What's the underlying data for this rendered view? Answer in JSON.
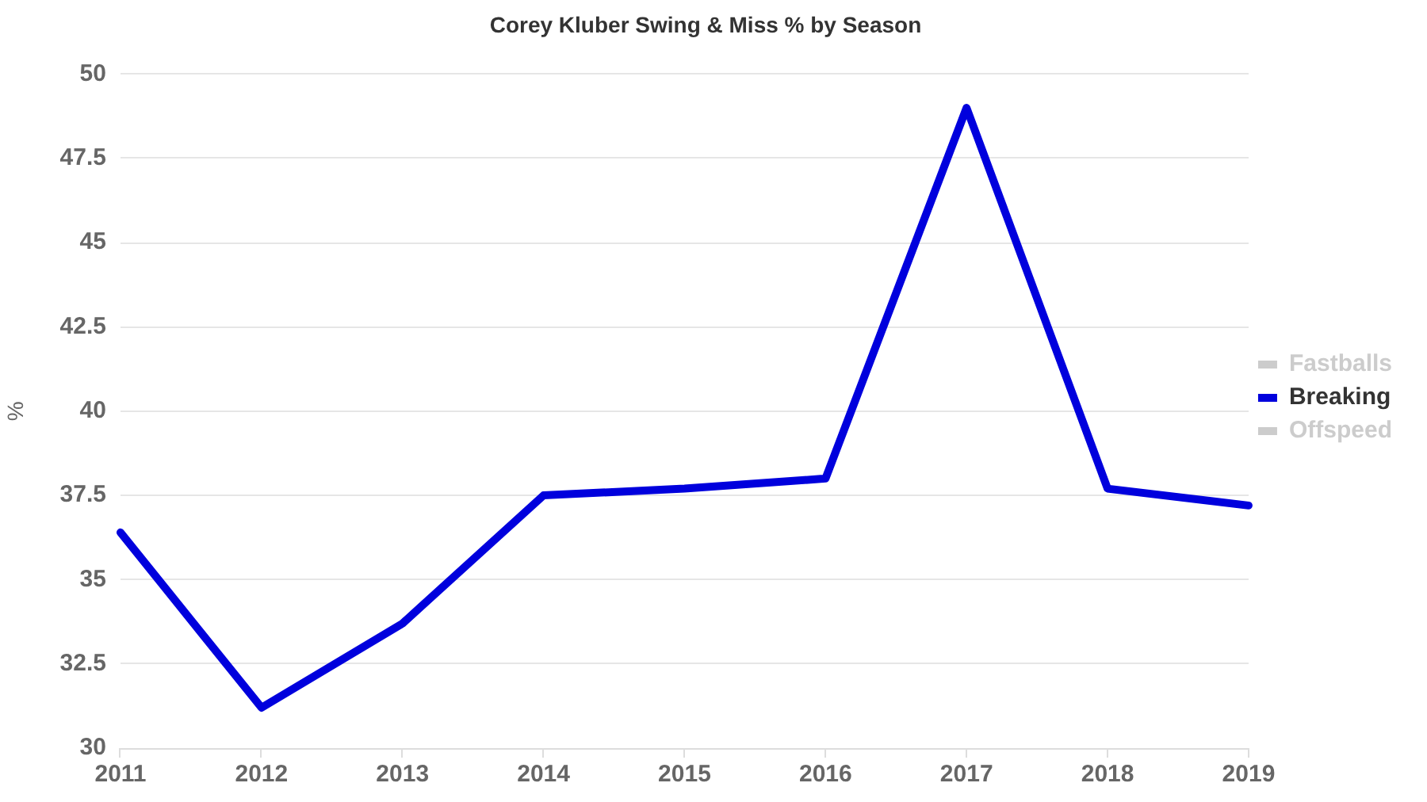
{
  "chart_data": {
    "type": "line",
    "title": "Corey Kluber Swing & Miss % by Season",
    "ylabel": "%",
    "categories": [
      "2011",
      "2012",
      "2013",
      "2014",
      "2015",
      "2016",
      "2017",
      "2018",
      "2019"
    ],
    "series": [
      {
        "name": "Fastballs",
        "color": "#cccccc",
        "values": [
          null,
          null,
          null,
          null,
          null,
          null,
          null,
          null,
          null
        ]
      },
      {
        "name": "Breaking",
        "color": "#0000dd",
        "values": [
          36.4,
          31.2,
          33.7,
          37.5,
          37.7,
          38.0,
          49.0,
          37.7,
          37.2
        ]
      },
      {
        "name": "Offspeed",
        "color": "#cccccc",
        "values": [
          null,
          null,
          null,
          null,
          null,
          null,
          null,
          null,
          null
        ]
      }
    ],
    "ylim": [
      30,
      50
    ],
    "yticks": [
      30,
      32.5,
      35,
      37.5,
      40,
      42.5,
      45,
      47.5,
      50
    ],
    "grid": "y",
    "legend": "right",
    "marker": "none",
    "line_style": "solid"
  }
}
